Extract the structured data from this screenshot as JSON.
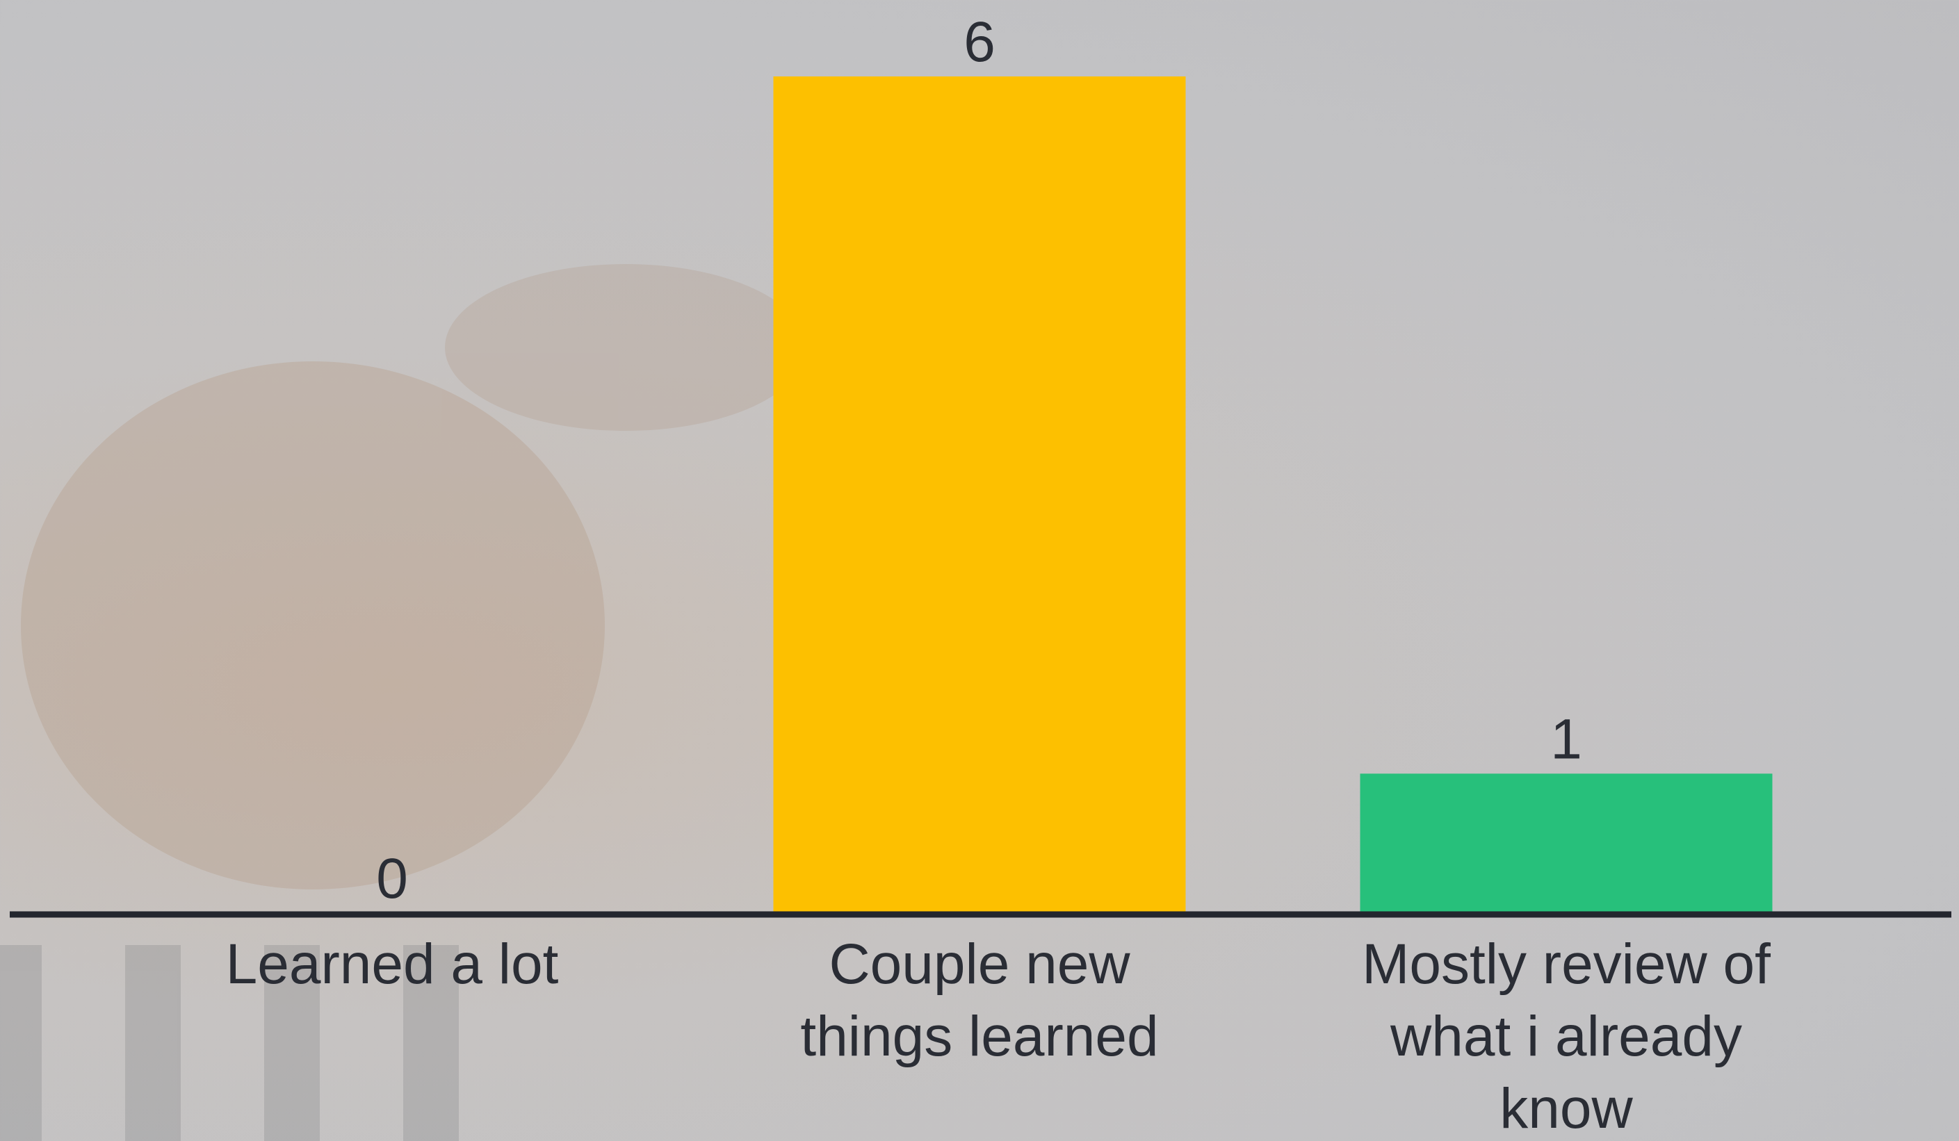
{
  "chart_data": {
    "type": "bar",
    "categories": [
      "Learned a lot",
      "Couple new things learned",
      "Mostly review of what i already know"
    ],
    "values": [
      0,
      6,
      1
    ],
    "colors": [
      "#5b6cf0",
      "#fdc000",
      "#27c07b"
    ],
    "ylim": [
      0,
      6
    ]
  }
}
